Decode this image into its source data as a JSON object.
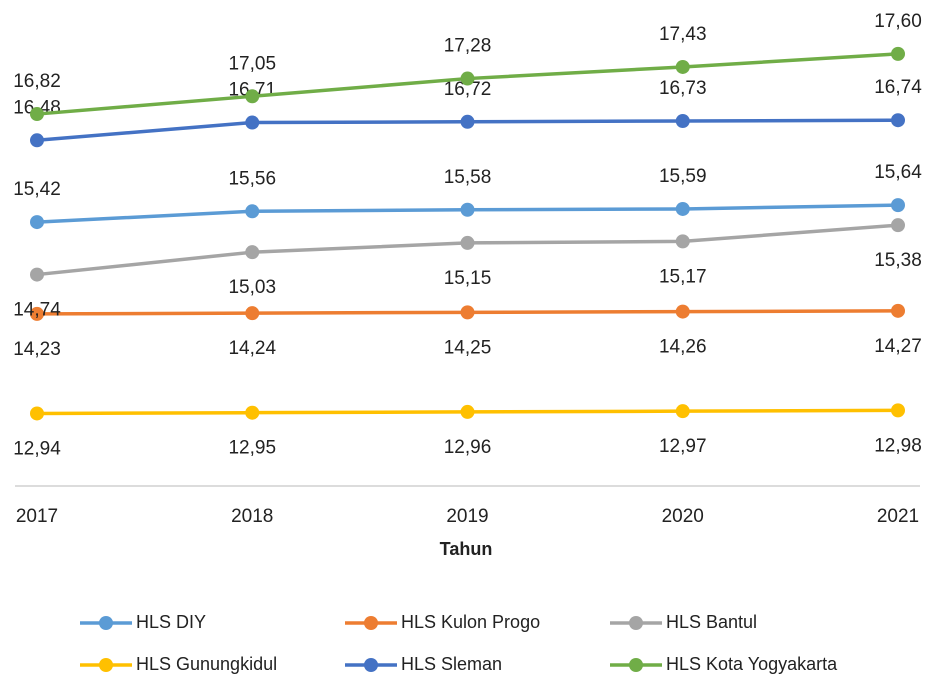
{
  "chart_data": {
    "type": "line",
    "x_label": "Tahun",
    "categories": [
      "2017",
      "2018",
      "2019",
      "2020",
      "2021"
    ],
    "ylim": [
      12,
      18
    ],
    "legend": "bottom",
    "series": [
      {
        "name": "HLS DIY",
        "color": "#5b9bd5",
        "values": [
          15.42,
          15.56,
          15.58,
          15.59,
          15.64
        ],
        "value_labels": [
          "15,42",
          "15,56",
          "15,58",
          "15,59",
          "15,64"
        ]
      },
      {
        "name": "HLS Kulon Progo",
        "color": "#ed7d31",
        "values": [
          14.23,
          14.24,
          14.25,
          14.26,
          14.27
        ],
        "value_labels": [
          "14,23",
          "14,24",
          "14,25",
          "14,26",
          "14,27"
        ]
      },
      {
        "name": "HLS Bantul",
        "color": "#a5a5a5",
        "values": [
          14.74,
          15.03,
          15.15,
          15.17,
          15.38
        ],
        "value_labels": [
          "14,74",
          "15,03",
          "15,15",
          "15,17",
          "15,38"
        ]
      },
      {
        "name": "HLS Gunungkidul",
        "color": "#ffc000",
        "values": [
          12.94,
          12.95,
          12.96,
          12.97,
          12.98
        ],
        "value_labels": [
          "12,94",
          "12,95",
          "12,96",
          "12,97",
          "12,98"
        ]
      },
      {
        "name": "HLS Sleman",
        "color": "#4472c4",
        "values": [
          16.48,
          16.71,
          16.72,
          16.73,
          16.74
        ],
        "value_labels": [
          "16,48",
          "16,71",
          "16,72",
          "16,73",
          "16,74"
        ]
      },
      {
        "name": "HLS Kota Yogyakarta",
        "color": "#70ad47",
        "values": [
          16.82,
          17.05,
          17.28,
          17.43,
          17.6
        ],
        "value_labels": [
          "16,82",
          "17,05",
          "17,28",
          "17,43",
          "17,60"
        ]
      }
    ]
  }
}
